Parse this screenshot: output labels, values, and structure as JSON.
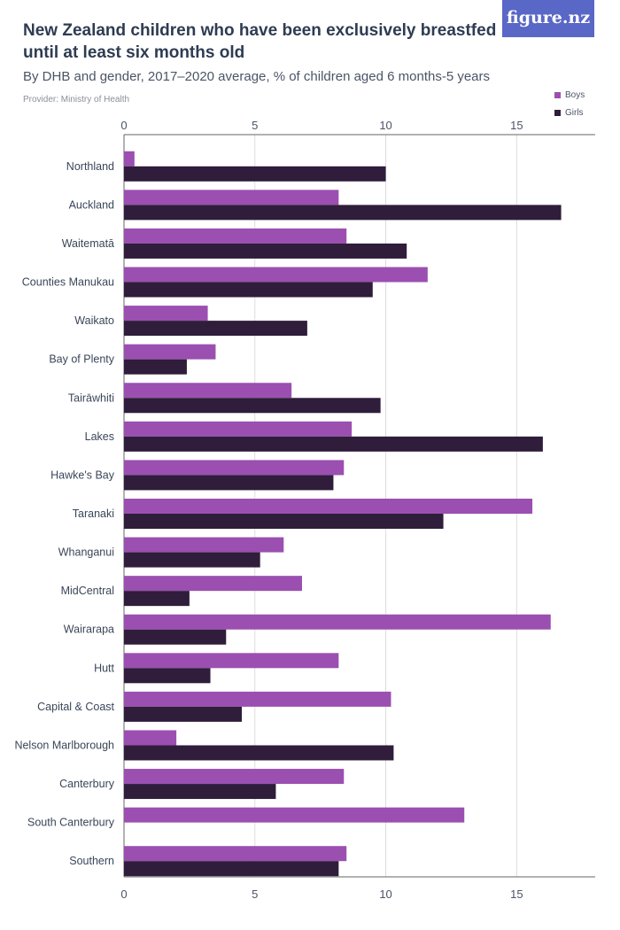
{
  "header": {
    "title": "New Zealand children who have been exclusively breastfed until at least six months old",
    "subtitle": "By DHB and gender, 2017–2020 average, % of children aged 6 months-5 years",
    "provider": "Provider: Ministry of Health",
    "logo_text": "figure.nz"
  },
  "colors": {
    "boys": "#9b4fb0",
    "girls": "#2f1d3b",
    "grid": "#dcdcdc",
    "axis": "#666666",
    "logo_bg": "#5967c6"
  },
  "chart_data": {
    "type": "bar",
    "orientation": "horizontal",
    "title": "New Zealand children who have been exclusively breastfed until at least six months old",
    "xlabel": "",
    "ylabel": "",
    "xlim": [
      0,
      18
    ],
    "xticks": [
      0,
      5,
      10,
      15
    ],
    "grid": true,
    "legend_position": "top-right",
    "categories": [
      "Northland",
      "Auckland",
      "Waitematā",
      "Counties Manukau",
      "Waikato",
      "Bay of Plenty",
      "Tairāwhiti",
      "Lakes",
      "Hawke's Bay",
      "Taranaki",
      "Whanganui",
      "MidCentral",
      "Wairarapa",
      "Hutt",
      "Capital & Coast",
      "Nelson Marlborough",
      "Canterbury",
      "South Canterbury",
      "Southern"
    ],
    "series": [
      {
        "name": "Boys",
        "values": [
          0.4,
          8.2,
          8.5,
          11.6,
          3.2,
          3.5,
          6.4,
          8.7,
          8.4,
          15.6,
          6.1,
          6.8,
          16.3,
          8.2,
          10.2,
          2.0,
          8.4,
          13.0,
          8.5
        ]
      },
      {
        "name": "Girls",
        "values": [
          10.0,
          16.7,
          10.8,
          9.5,
          7.0,
          2.4,
          9.8,
          16.0,
          8.0,
          12.2,
          5.2,
          2.5,
          3.9,
          3.3,
          4.5,
          10.3,
          5.8,
          null,
          8.2
        ]
      }
    ]
  }
}
